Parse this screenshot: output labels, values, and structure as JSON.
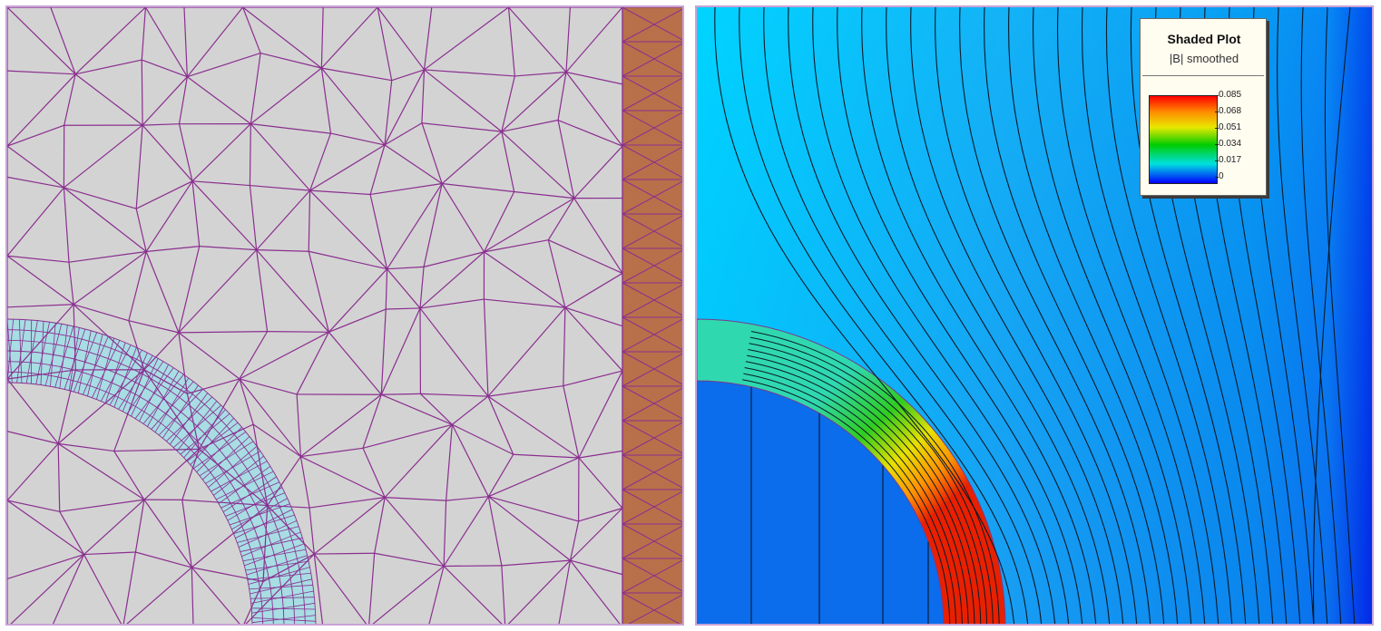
{
  "legend": {
    "title": "Shaded Plot",
    "subtitle": "|B| smoothed",
    "ticks": [
      "0.085",
      "0.068",
      "0.051",
      "0.034",
      "0.017",
      "0"
    ],
    "colormap": [
      "#ff0000",
      "#ff8a00",
      "#e8e800",
      "#00cc00",
      "#00e0e0",
      "#0000ff"
    ]
  },
  "colors": {
    "mesh_background": "#d3d3d3",
    "mesh_lines": "#8a2f8f",
    "ring_fill": "#a7dde3",
    "iron_fill": "#b8704a",
    "field_background": "#11a6ee",
    "flux_lines": "#0a1a2a"
  }
}
